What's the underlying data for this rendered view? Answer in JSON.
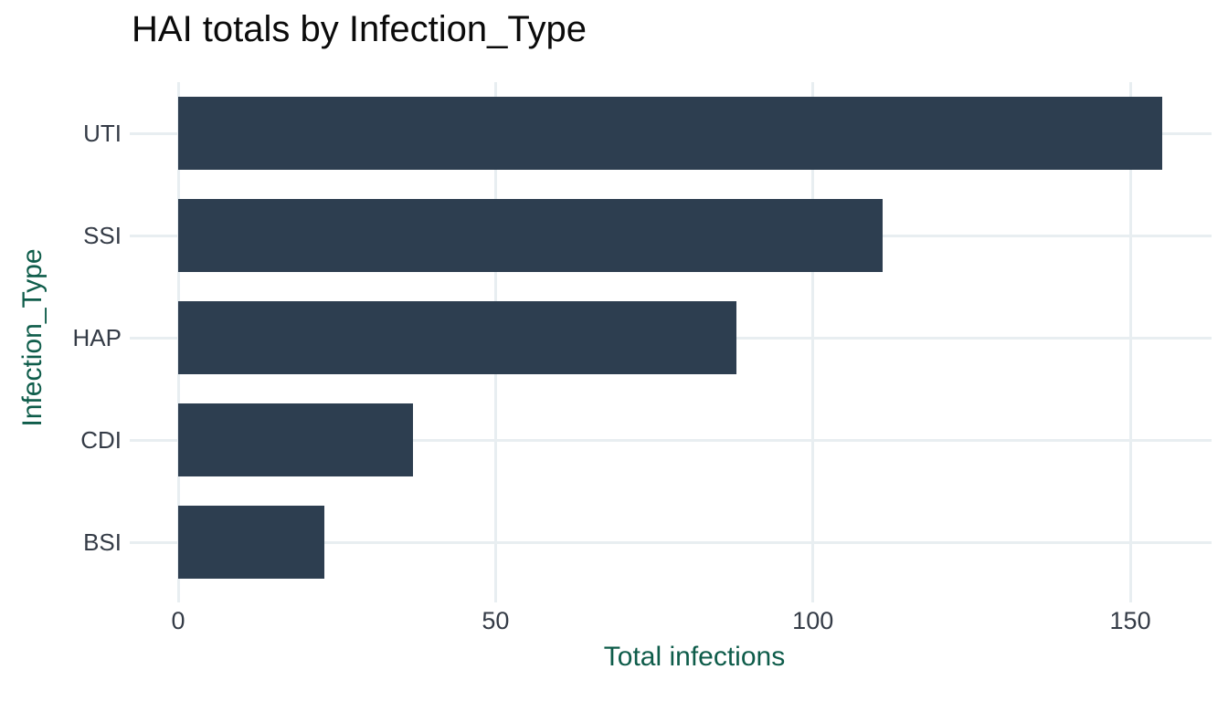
{
  "chart_data": {
    "type": "bar",
    "orientation": "horizontal",
    "title": "HAI totals by Infection_Type",
    "xlabel": "Total infections",
    "ylabel": "Infection_Type",
    "categories": [
      "UTI",
      "SSI",
      "HAP",
      "CDI",
      "BSI"
    ],
    "values": [
      155,
      111,
      88,
      37,
      23
    ],
    "x_ticks": [
      0,
      50,
      100,
      150
    ],
    "xlim": [
      0,
      162.8
    ],
    "grid": "major-only",
    "legend": "none",
    "colors": {
      "bar": "#2d3e50",
      "grid": "#e8eef1",
      "title": "#0b0b0b",
      "tick_label": "#343b46",
      "axis_title": "#0e5c4a",
      "background": "#ffffff"
    }
  }
}
